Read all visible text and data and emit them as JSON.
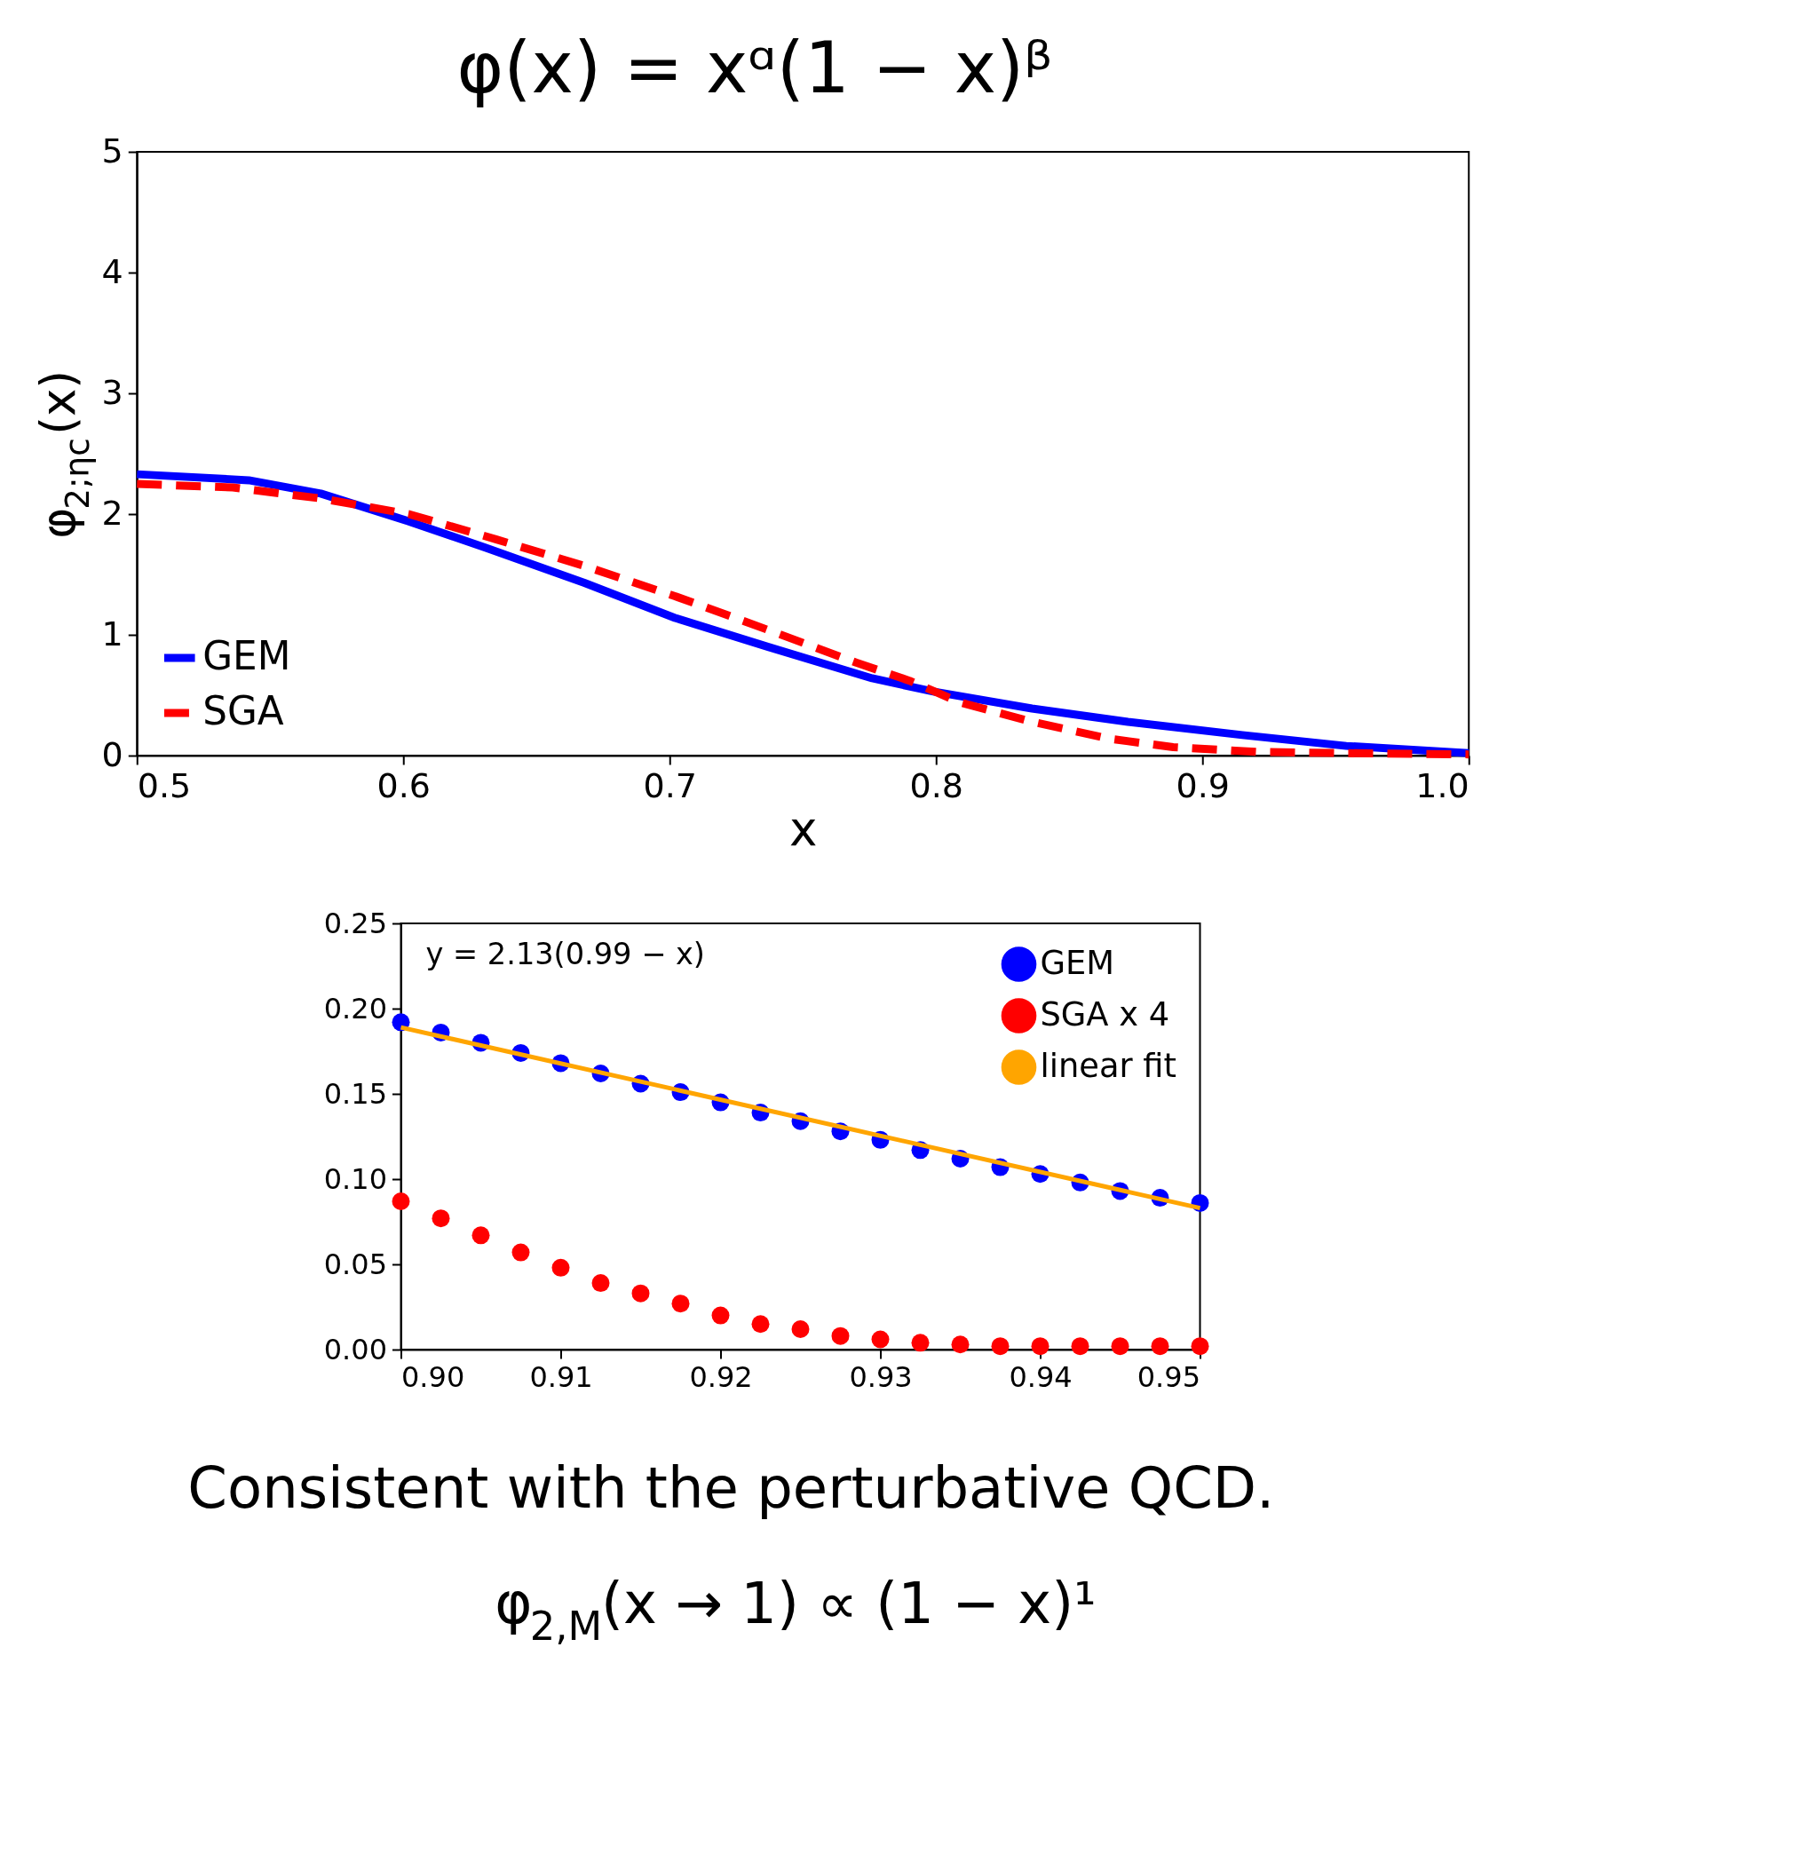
{
  "chart_data": [
    {
      "type": "line",
      "title": "φ(x) = xᵅ(1 − x)ᵝ",
      "xlabel": "x",
      "ylabel": "φ$_{2;ηc}$(x)",
      "xlim": [
        0.5,
        1.0
      ],
      "ylim": [
        0,
        5
      ],
      "xticks": [
        0.5,
        0.6,
        0.7,
        0.8,
        0.9,
        {
          "value": 1.0,
          "label": "1.0"
        }
      ],
      "yticks": [
        0,
        1,
        2,
        3,
        4,
        5
      ],
      "grid": false,
      "legend": "bottom left",
      "annotations": [
        "Consistent with the perturbative QCD.",
        "φ$_{2,M}$(x → 1) ∝ (1 − x)¹"
      ],
      "series": [
        {
          "name": "GEM",
          "color": "#0000ff",
          "line_style": "solid",
          "x": [
            0.5,
            0.542,
            0.569,
            0.602,
            0.631,
            0.668,
            0.702,
            0.737,
            0.776,
            0.799,
            0.836,
            0.872,
            0.915,
            0.954,
            1.0
          ],
          "values": [
            2.33,
            2.28,
            2.17,
            1.94,
            1.72,
            1.43,
            1.14,
            0.9,
            0.64,
            0.53,
            0.39,
            0.28,
            0.17,
            0.08,
            0.02
          ]
        },
        {
          "name": "SGA",
          "color": "#ff0000",
          "line_style": "dashed",
          "x": [
            0.5,
            0.536,
            0.569,
            0.602,
            0.635,
            0.668,
            0.702,
            0.737,
            0.77,
            0.79,
            0.809,
            0.836,
            0.865,
            0.889,
            0.921,
            0.954,
            1.0
          ],
          "values": [
            2.25,
            2.22,
            2.13,
            2.0,
            1.79,
            1.57,
            1.32,
            1.04,
            0.77,
            0.62,
            0.44,
            0.28,
            0.14,
            0.07,
            0.03,
            0.02,
            0.01
          ]
        }
      ]
    },
    {
      "type": "scatter",
      "xlim": [
        0.9,
        0.95
      ],
      "ylim": [
        0,
        0.25
      ],
      "xticks": [
        {
          "value": 0.9,
          "label": "0.90"
        },
        0.91,
        0.92,
        0.93,
        0.94,
        0.95
      ],
      "yticks": [
        {
          "value": 0,
          "label": "0.00"
        },
        0.05,
        {
          "value": 0.1,
          "label": "0.10"
        },
        0.15,
        {
          "value": 0.2,
          "label": "0.20"
        },
        0.25
      ],
      "grid": false,
      "legend": "top right",
      "annotations": [
        "y = 2.13(0.99 − x)"
      ],
      "series": [
        {
          "name": "GEM",
          "color": "#0000ff",
          "marker": "circle",
          "x": [
            0.9,
            0.9025,
            0.905,
            0.9075,
            0.91,
            0.9125,
            0.915,
            0.9175,
            0.92,
            0.9225,
            0.925,
            0.9275,
            0.93,
            0.9325,
            0.935,
            0.9375,
            0.94,
            0.9425,
            0.945,
            0.9475,
            0.95
          ],
          "values": [
            0.192,
            0.186,
            0.18,
            0.174,
            0.168,
            0.162,
            0.156,
            0.151,
            0.145,
            0.139,
            0.134,
            0.128,
            0.123,
            0.117,
            0.112,
            0.107,
            0.103,
            0.098,
            0.093,
            0.089,
            0.086
          ]
        },
        {
          "name": "SGA x 4",
          "color": "#ff0000",
          "marker": "circle",
          "x": [
            0.9,
            0.9025,
            0.905,
            0.9075,
            0.91,
            0.9125,
            0.915,
            0.9175,
            0.92,
            0.9225,
            0.925,
            0.9275,
            0.93,
            0.9325,
            0.935,
            0.9375,
            0.94,
            0.9425,
            0.945,
            0.9475,
            0.95
          ],
          "values": [
            0.087,
            0.077,
            0.067,
            0.057,
            0.048,
            0.039,
            0.033,
            0.027,
            0.02,
            0.015,
            0.012,
            0.008,
            0.006,
            0.004,
            0.003,
            0.002,
            0.002,
            0.002,
            0.002,
            0.002,
            0.002
          ]
        },
        {
          "name": "linear fit",
          "type": "line",
          "color": "#ffa500",
          "marker": "none",
          "line_style": "solid",
          "x": [
            0.9,
            0.95
          ],
          "values": [
            0.189,
            0.083
          ]
        }
      ]
    }
  ]
}
